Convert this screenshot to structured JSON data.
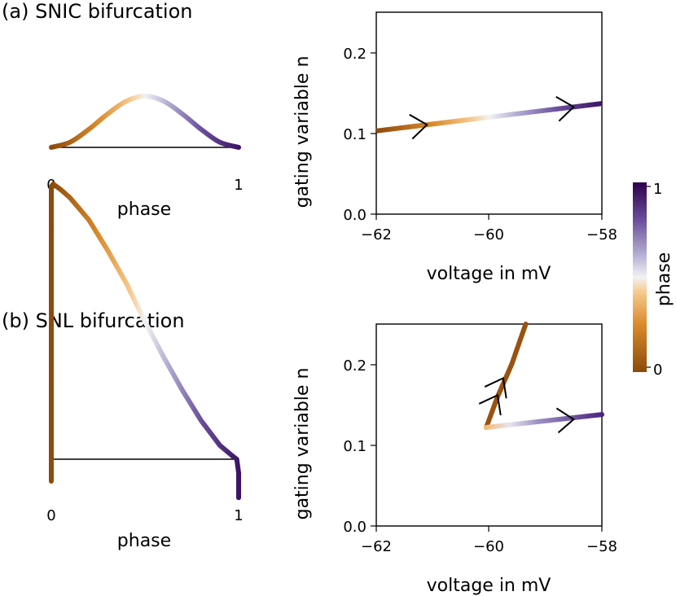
{
  "colors": {
    "phase_colormap": [
      "#7f3b08",
      "#b35806",
      "#e08214",
      "#fdb863",
      "#fee0b6",
      "#f7f7f7",
      "#d8daeb",
      "#b2abd2",
      "#8073ac",
      "#542788",
      "#2d004b"
    ],
    "axes": "#000000",
    "arrow": "#000000"
  },
  "colorbar": {
    "label": "phase",
    "ticks": [
      "1",
      "0"
    ]
  },
  "chart_data": [
    {
      "panel": "a-left",
      "type": "line",
      "title": "(a) SNIC bifurcation",
      "xlabel": "phase",
      "ylabel": "",
      "xlim": [
        0,
        1
      ],
      "ylim": [
        0,
        1
      ],
      "xticks": [
        "0",
        "1"
      ],
      "x": [
        0,
        0.1,
        0.2,
        0.3,
        0.4,
        0.5,
        0.6,
        0.7,
        0.8,
        0.9,
        1
      ],
      "y": [
        0,
        0.1,
        0.35,
        0.65,
        0.9,
        1,
        0.9,
        0.65,
        0.35,
        0.1,
        0
      ],
      "colored_by": "phase"
    },
    {
      "panel": "a-right",
      "type": "line",
      "xlabel": "voltage in mV",
      "ylabel": "gating variable n",
      "xlim": [
        -62,
        -58
      ],
      "ylim": [
        0,
        0.25
      ],
      "xticks": [
        "−62",
        "−60",
        "−58"
      ],
      "yticks": [
        "0.0",
        "0.1",
        "0.2"
      ],
      "x": [
        -62,
        -58
      ],
      "y": [
        0.103,
        0.137
      ],
      "arrows_at_x": [
        -61.1,
        -58.5
      ],
      "colored_by": "phase"
    },
    {
      "panel": "b-left",
      "type": "line",
      "title": "(b) SNL bifurcation",
      "xlabel": "phase",
      "ylabel": "",
      "xlim": [
        0,
        1
      ],
      "ylim": [
        -0.15,
        1
      ],
      "xticks": [
        "0",
        "1"
      ],
      "x": [
        0,
        0.0,
        0.01,
        0.05,
        0.1,
        0.2,
        0.3,
        0.4,
        0.5,
        0.6,
        0.7,
        0.8,
        0.9,
        0.97,
        0.99,
        1,
        1
      ],
      "y": [
        -0.08,
        0.99,
        1.0,
        0.98,
        0.95,
        0.87,
        0.76,
        0.64,
        0.5,
        0.37,
        0.25,
        0.14,
        0.05,
        0.01,
        0.0,
        -0.05,
        -0.14
      ],
      "colored_by": "phase"
    },
    {
      "panel": "b-right",
      "type": "line",
      "xlabel": "voltage in mV",
      "ylabel": "gating variable n",
      "xlim": [
        -62,
        -58
      ],
      "ylim": [
        0,
        0.25
      ],
      "xticks": [
        "−62",
        "−60",
        "−58"
      ],
      "yticks": [
        "0.0",
        "0.1",
        "0.2"
      ],
      "x": [
        -60.05,
        -59.85,
        -59.6,
        -59.3,
        -58
      ],
      "y": [
        0.122,
        0.16,
        0.2,
        0.25,
        0.138
      ],
      "branches": [
        {
          "x": [
            -60.05,
            -59.85,
            -59.6,
            -59.35
          ],
          "y": [
            0.122,
            0.16,
            0.2,
            0.25
          ]
        },
        {
          "x": [
            -60.05,
            -58
          ],
          "y": [
            0.122,
            0.138
          ]
        }
      ],
      "arrows": [
        {
          "x": -59.85,
          "y": 0.162,
          "direction": "up"
        },
        {
          "x": -59.75,
          "y": 0.183,
          "direction": "up"
        },
        {
          "x": -58.5,
          "y": 0.132,
          "direction": "right"
        }
      ],
      "colored_by": "phase"
    }
  ]
}
